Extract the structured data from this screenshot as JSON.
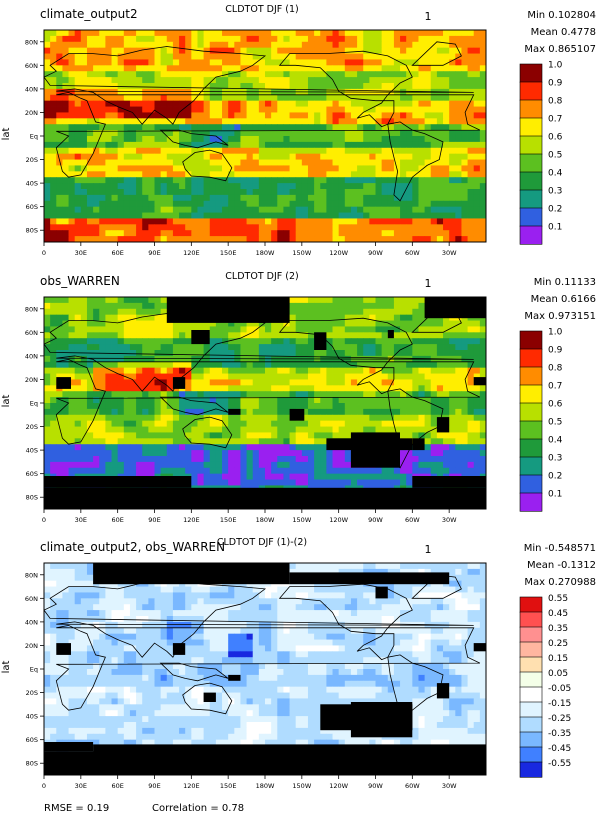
{
  "ylabel": "lat",
  "lon_ticks": [
    "0",
    "30E",
    "60E",
    "90E",
    "120E",
    "150E",
    "180W",
    "150W",
    "120W",
    "90W",
    "60W",
    "30W"
  ],
  "lat_ticks": [
    "80N",
    "60N",
    "40N",
    "20N",
    "Eq",
    "20S",
    "40S",
    "60S",
    "80S"
  ],
  "panels": [
    {
      "title": "CLDTOT DJF (1)",
      "left_label": "climate_output2",
      "center_num": "1",
      "min_text": "Min 0.102804",
      "mean_text": "Mean 0.4778",
      "max_text": "Max 0.865107",
      "colorbar_labels": [
        "1.0",
        "0.9",
        "0.8",
        "0.7",
        "0.6",
        "0.5",
        "0.4",
        "0.3",
        "0.2",
        "0.1"
      ],
      "colors": [
        "#8b0000",
        "#ff2a00",
        "#ff8c00",
        "#ffee00",
        "#b8e000",
        "#5cc020",
        "#1f9a3a",
        "#159a80",
        "#3060e0",
        "#9a20f0"
      ]
    },
    {
      "title": "CLDTOT DJF (2)",
      "left_label": "obs_WARREN",
      "center_num": "1",
      "min_text": "Min 0.11133",
      "mean_text": "Mean 0.6166",
      "max_text": "Max 0.973151",
      "colorbar_labels": [
        "1.0",
        "0.9",
        "0.8",
        "0.7",
        "0.6",
        "0.5",
        "0.4",
        "0.3",
        "0.2",
        "0.1"
      ],
      "colors": [
        "#8b0000",
        "#ff2a00",
        "#ff8c00",
        "#ffee00",
        "#b8e000",
        "#5cc020",
        "#1f9a3a",
        "#159a80",
        "#3060e0",
        "#9a20f0"
      ]
    },
    {
      "title": "CLDTOT DJF (1)-(2)",
      "left_label": "climate_output2, obs_WARREN",
      "center_num": "1",
      "min_text": "Min -0.548571",
      "mean_text": "Mean -0.1312",
      "max_text": "Max 0.270988",
      "colorbar_labels": [
        "0.55",
        "0.45",
        "0.35",
        "0.25",
        "0.15",
        "0.05",
        "-0.05",
        "-0.15",
        "-0.25",
        "-0.35",
        "-0.45",
        "-0.55"
      ],
      "colors": [
        "#e01010",
        "#ff5050",
        "#ff9090",
        "#ffb6a0",
        "#ffe0b0",
        "#f4ffe8",
        "#ffffff",
        "#e0f4ff",
        "#b0dcff",
        "#7ab8ff",
        "#4080ff",
        "#1828e0"
      ]
    }
  ],
  "footer": {
    "rmse": "RMSE = 0.19",
    "correlation": "Correlation = 0.78"
  },
  "chart_data": {
    "type": "heatmap",
    "variable": "CLDTOT",
    "season": "DJF",
    "x_range_deg": [
      0,
      360
    ],
    "y_range_deg": [
      -90,
      90
    ],
    "stats": [
      {
        "min": 0.102804,
        "mean": 0.4778,
        "max": 0.865107
      },
      {
        "min": 0.11133,
        "mean": 0.6166,
        "max": 0.973151
      },
      {
        "min": -0.548571,
        "mean": -0.1312,
        "max": 0.270988
      }
    ],
    "rmse": 0.19,
    "correlation": 0.78
  }
}
